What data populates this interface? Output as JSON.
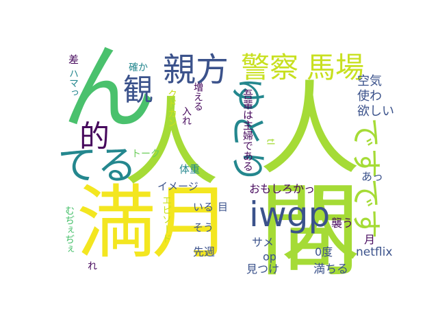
{
  "words": {
    "ningen": "人間",
    "mangetsu": "満月",
    "n": "ん",
    "hito": "人",
    "keisatsu": "警察",
    "baba": "馬場",
    "oyakata": "親方",
    "kan": "観",
    "teki": "的",
    "teru": "てる",
    "yutori": "ゆとり",
    "desudesu": "ですです",
    "iwgp": "iwgp",
    "kuufuku": "空気",
    "tsukawa": "使わ",
    "hoshii": "欲しい",
    "aa": "あっ",
    "wagahai": "吾輩は主婦である",
    "tl": "tl",
    "omoshiroka": "おもしろかっ",
    "osou": "襲う",
    "tsuki": "月",
    "netflix": "netflix",
    "reido": "0度",
    "op": "op",
    "mitsuke": "見つけ",
    "michiru": "満ちる",
    "same": "サメ",
    "senshuu": "先週",
    "sou": "そう",
    "iru": "いる",
    "me": "目",
    "image": "イメージ",
    "taijuu": "体重",
    "ireru": "入れ",
    "fueru": "増える",
    "kudokan": "クドカン",
    "tashika": "確か",
    "talk": "トーク",
    "episode": "エピソード",
    "sa": "差",
    "hamattsu": "ハマっ",
    "muzee": "むぢぇぢぇ",
    "re": "れ"
  },
  "colors": {
    "yellow": "#f3e620",
    "lime": "#a5db36",
    "green": "#4ac16d",
    "teal": "#24878e",
    "navy": "#3b528b",
    "purple": "#46085c",
    "lightgreen": "#6ccd5a",
    "olive": "#c8e020"
  }
}
